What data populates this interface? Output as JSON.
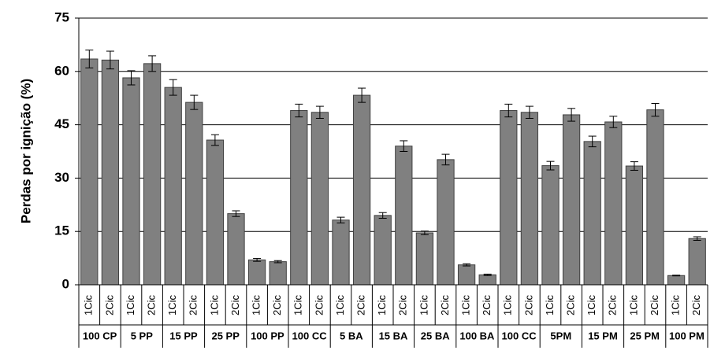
{
  "chart_data": {
    "type": "bar",
    "y_label": "Perdas por ignição (%)",
    "categories": [
      "1Cic",
      "2Cic",
      "1Cic",
      "2Cic",
      "1Cic",
      "2Cic",
      "1Cic",
      "2Cic",
      "1Cic",
      "2Cic",
      "1Cic",
      "2Cic",
      "1Cic",
      "2Cic",
      "1Cic",
      "2Cic",
      "1Cic",
      "2Cic",
      "1Cic",
      "2Cic",
      "1Cic",
      "2Cic",
      "1Cic",
      "2Cic",
      "1Cic",
      "2Cic",
      "1Cic",
      "2Cic",
      "1Cic",
      "2Cic"
    ],
    "groups": [
      "100 CP",
      "5 PP",
      "15 PP",
      "25 PP",
      "100 PP",
      "100 CC",
      "5 BA",
      "15 BA",
      "25 BA",
      "100 BA",
      "100 CC",
      "5PM",
      "15 PM",
      "25 PM",
      "100 PM"
    ],
    "values": [
      63.5,
      63.2,
      58.2,
      62.2,
      55.5,
      51.3,
      40.7,
      20,
      7,
      6.5,
      49,
      48.5,
      18.2,
      53.3,
      19.5,
      39,
      14.6,
      35.2,
      5.6,
      2.8,
      49,
      48.5,
      33.5,
      47.8,
      40.3,
      45.8,
      33.4,
      49.2,
      2.6,
      13
    ],
    "errors": [
      2.5,
      2.5,
      2,
      2.2,
      2.2,
      2,
      1.5,
      0.8,
      0.4,
      0.3,
      1.8,
      1.7,
      0.8,
      2,
      0.8,
      1.5,
      0.5,
      1.5,
      0.3,
      0.2,
      1.8,
      1.7,
      1.2,
      1.8,
      1.5,
      1.6,
      1.2,
      1.8,
      0.1,
      0.5
    ],
    "color": "#808080",
    "ylim": [
      0,
      75
    ],
    "yticks": [
      0,
      15,
      30,
      45,
      60,
      75
    ],
    "grid": true
  }
}
